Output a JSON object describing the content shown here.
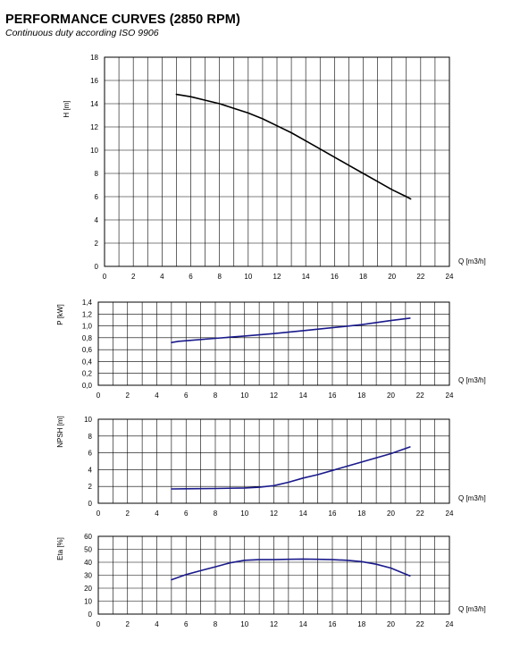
{
  "title": "PERFORMANCE CURVES (2850 RPM)",
  "subtitle": "Continuous duty according ISO 9906",
  "chart_data": [
    {
      "type": "line",
      "ylabel": "H [m]",
      "xlabel": "Q [m3/h]",
      "xlim": [
        0,
        24
      ],
      "ylim": [
        0,
        18
      ],
      "x_ticks": [
        "0",
        "2",
        "4",
        "6",
        "8",
        "10",
        "12",
        "14",
        "16",
        "18",
        "20",
        "22",
        "24"
      ],
      "y_ticks": [
        "0",
        "2",
        "4",
        "6",
        "8",
        "10",
        "12",
        "14",
        "16",
        "18"
      ],
      "grid": true,
      "series": [
        {
          "color": "#000000",
          "x": [
            5.0,
            6.0,
            7.0,
            8.0,
            9.0,
            10.0,
            11.0,
            12.0,
            13.0,
            14.0,
            15.0,
            16.0,
            17.0,
            18.0,
            19.0,
            20.0,
            21.0,
            21.3
          ],
          "y": [
            14.8,
            14.6,
            14.3,
            14.0,
            13.6,
            13.2,
            12.7,
            12.1,
            11.5,
            10.8,
            10.1,
            9.4,
            8.7,
            8.0,
            7.3,
            6.6,
            6.0,
            5.8
          ]
        }
      ]
    },
    {
      "type": "line",
      "ylabel": "P [kW]",
      "xlabel": "Q [m3/h]",
      "xlim": [
        0,
        24
      ],
      "ylim": [
        0,
        1.4
      ],
      "x_ticks": [
        "0",
        "2",
        "4",
        "6",
        "8",
        "10",
        "12",
        "14",
        "16",
        "18",
        "20",
        "22",
        "24"
      ],
      "y_ticks": [
        "0,0",
        "0,2",
        "0,4",
        "0,6",
        "0,8",
        "1,0",
        "1,2",
        "1,4"
      ],
      "grid": true,
      "series": [
        {
          "color": "#1a1a8c",
          "x": [
            5.0,
            5.5,
            6.0,
            8.0,
            10.0,
            12.0,
            14.0,
            16.0,
            18.0,
            20.0,
            21.3
          ],
          "y": [
            0.72,
            0.74,
            0.75,
            0.79,
            0.83,
            0.87,
            0.92,
            0.97,
            1.02,
            1.09,
            1.13
          ]
        }
      ]
    },
    {
      "type": "line",
      "ylabel": "NPSH [m]",
      "xlabel": "Q [m3/h]",
      "xlim": [
        0,
        24
      ],
      "ylim": [
        0,
        10
      ],
      "x_ticks": [
        "0",
        "2",
        "4",
        "6",
        "8",
        "10",
        "12",
        "14",
        "16",
        "18",
        "20",
        "22",
        "24"
      ],
      "y_ticks": [
        "0",
        "2",
        "4",
        "6",
        "8",
        "10"
      ],
      "grid": true,
      "series": [
        {
          "color": "#1a1a8c",
          "x": [
            5.0,
            6.0,
            8.0,
            10.0,
            11.0,
            12.0,
            13.0,
            14.0,
            15.0,
            16.0,
            18.0,
            20.0,
            21.3
          ],
          "y": [
            1.7,
            1.72,
            1.75,
            1.82,
            1.9,
            2.1,
            2.5,
            3.0,
            3.4,
            3.9,
            4.9,
            5.9,
            6.7
          ]
        }
      ]
    },
    {
      "type": "line",
      "ylabel": "Eta [%]",
      "xlabel": "Q [m3/h]",
      "xlim": [
        0,
        24
      ],
      "ylim": [
        0,
        60
      ],
      "x_ticks": [
        "0",
        "2",
        "4",
        "6",
        "8",
        "10",
        "12",
        "14",
        "16",
        "18",
        "20",
        "22",
        "24"
      ],
      "y_ticks": [
        "0",
        "10",
        "20",
        "30",
        "40",
        "50",
        "60"
      ],
      "grid": true,
      "series": [
        {
          "color": "#1a1a8c",
          "x": [
            5.0,
            6.0,
            7.0,
            8.0,
            9.0,
            10.0,
            11.0,
            12.0,
            13.0,
            14.0,
            15.0,
            16.0,
            17.0,
            18.0,
            19.0,
            20.0,
            21.3
          ],
          "y": [
            26.5,
            30.5,
            33.5,
            36.5,
            39.5,
            41.5,
            42.0,
            42.0,
            42.3,
            42.5,
            42.3,
            42.0,
            41.5,
            40.5,
            38.5,
            35.5,
            29.5
          ]
        }
      ]
    }
  ]
}
